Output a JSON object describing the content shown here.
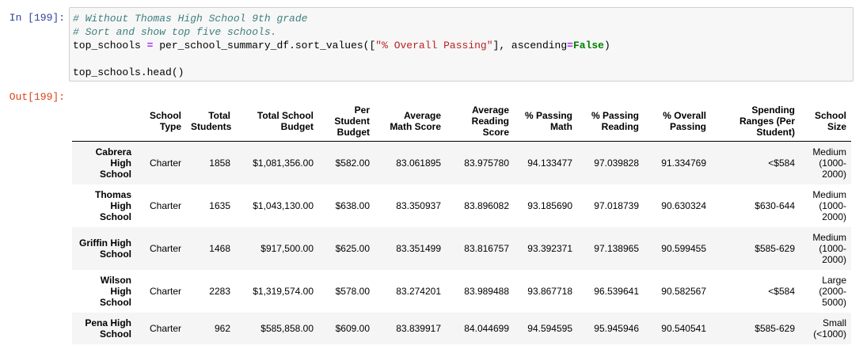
{
  "input_prompt": "In [199]:",
  "output_prompt": "Out[199]:",
  "code": {
    "comment1": "# Without Thomas High School 9th grade",
    "comment2": "# Sort and show top five schools.",
    "line3_lhs": "top_schools ",
    "line3_eq": "=",
    "line3_mid": " per_school_summary_df.sort_values([",
    "line3_str": "\"% Overall Passing\"",
    "line3_tail": "], ascending",
    "line3_eq2": "=",
    "line3_kw": "False",
    "line3_end": ")",
    "line5": "top_schools.head()"
  },
  "table": {
    "columns": [
      "School Type",
      "Total Students",
      "Total School Budget",
      "Per Student Budget",
      "Average Math Score",
      "Average Reading Score",
      "% Passing Math",
      "% Passing Reading",
      "% Overall Passing",
      "Spending Ranges (Per Student)",
      "School Size"
    ],
    "rows": [
      {
        "index": "Cabrera High School",
        "cells": [
          "Charter",
          "1858",
          "$1,081,356.00",
          "$582.00",
          "83.061895",
          "83.975780",
          "94.133477",
          "97.039828",
          "91.334769",
          "<$584",
          "Medium (1000-2000)"
        ]
      },
      {
        "index": "Thomas High School",
        "cells": [
          "Charter",
          "1635",
          "$1,043,130.00",
          "$638.00",
          "83.350937",
          "83.896082",
          "93.185690",
          "97.018739",
          "90.630324",
          "$630-644",
          "Medium (1000-2000)"
        ]
      },
      {
        "index": "Griffin High School",
        "cells": [
          "Charter",
          "1468",
          "$917,500.00",
          "$625.00",
          "83.351499",
          "83.816757",
          "93.392371",
          "97.138965",
          "90.599455",
          "$585-629",
          "Medium (1000-2000)"
        ]
      },
      {
        "index": "Wilson High School",
        "cells": [
          "Charter",
          "2283",
          "$1,319,574.00",
          "$578.00",
          "83.274201",
          "83.989488",
          "93.867718",
          "96.539641",
          "90.582567",
          "<$584",
          "Large (2000-5000)"
        ]
      },
      {
        "index": "Pena High School",
        "cells": [
          "Charter",
          "962",
          "$585,858.00",
          "$609.00",
          "83.839917",
          "84.044699",
          "94.594595",
          "95.945946",
          "90.540541",
          "$585-629",
          "Small (<1000)"
        ]
      }
    ]
  }
}
